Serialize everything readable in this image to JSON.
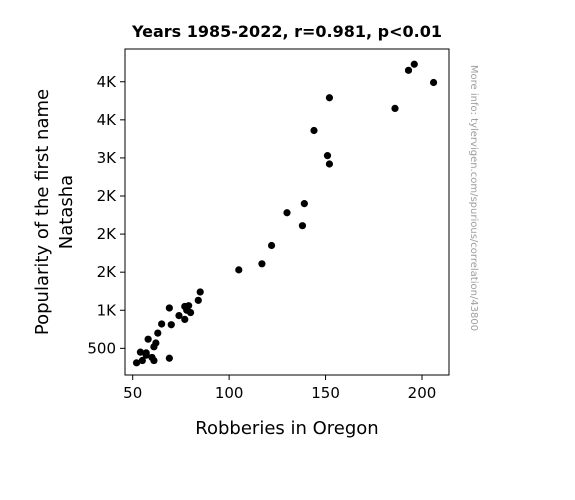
{
  "chart_data": {
    "type": "scatter",
    "title": "Years 1985-2022, r=0.981, p<0.01",
    "xlabel": "Robberies in Oregon",
    "ylabel_line1": "Popularity of the first name",
    "ylabel_line2": "Natasha",
    "watermark": "More info: tylervigen.com/spurious/correlation/43800",
    "xlim": [
      46,
      214
    ],
    "ylim": [
      150,
      4430
    ],
    "x_ticks": [
      50,
      100,
      150,
      200
    ],
    "x_tick_labels": [
      "50",
      "100",
      "150",
      "200"
    ],
    "y_ticks": [
      500,
      1000,
      1500,
      2000,
      2500,
      3000,
      3500,
      4000
    ],
    "y_tick_labels": [
      "500",
      "1K",
      "2K",
      "2K",
      "2K",
      "3K",
      "4K",
      "4K"
    ],
    "marker_color": "#000000",
    "grid": false,
    "points": [
      {
        "x": 196,
        "y": 4230
      },
      {
        "x": 193,
        "y": 4150
      },
      {
        "x": 206,
        "y": 3990
      },
      {
        "x": 152,
        "y": 3790
      },
      {
        "x": 186,
        "y": 3650
      },
      {
        "x": 144,
        "y": 3360
      },
      {
        "x": 151,
        "y": 3030
      },
      {
        "x": 152,
        "y": 2920
      },
      {
        "x": 139,
        "y": 2400
      },
      {
        "x": 130,
        "y": 2280
      },
      {
        "x": 138,
        "y": 2110
      },
      {
        "x": 122,
        "y": 1850
      },
      {
        "x": 117,
        "y": 1610
      },
      {
        "x": 105,
        "y": 1530
      },
      {
        "x": 85,
        "y": 1240
      },
      {
        "x": 84,
        "y": 1130
      },
      {
        "x": 69,
        "y": 1030
      },
      {
        "x": 77,
        "y": 1050
      },
      {
        "x": 79,
        "y": 1060
      },
      {
        "x": 78,
        "y": 1000
      },
      {
        "x": 80,
        "y": 970
      },
      {
        "x": 74,
        "y": 930
      },
      {
        "x": 77,
        "y": 880
      },
      {
        "x": 65,
        "y": 820
      },
      {
        "x": 70,
        "y": 810
      },
      {
        "x": 63,
        "y": 700
      },
      {
        "x": 58,
        "y": 620
      },
      {
        "x": 62,
        "y": 570
      },
      {
        "x": 61,
        "y": 520
      },
      {
        "x": 54,
        "y": 450
      },
      {
        "x": 57,
        "y": 440
      },
      {
        "x": 57,
        "y": 410
      },
      {
        "x": 60,
        "y": 380
      },
      {
        "x": 69,
        "y": 370
      },
      {
        "x": 55,
        "y": 340
      },
      {
        "x": 61,
        "y": 340
      },
      {
        "x": 52,
        "y": 310
      }
    ]
  }
}
